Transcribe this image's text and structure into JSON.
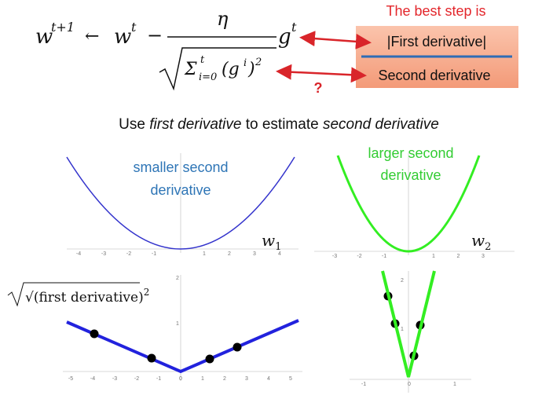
{
  "formula": {
    "lhs": "w",
    "lhs_sup": "t+1",
    "arrow": "←",
    "w": "w",
    "w_sup": "t",
    "minus": "−",
    "eta": "η",
    "sigma": "Σ",
    "sigma_sup": "t",
    "sigma_sub": "i=0",
    "g_open": "(g",
    "g_sup": "i",
    "g_close": ")",
    "square": "2",
    "g": "g",
    "g_t": "t"
  },
  "box": {
    "title": "The best step is",
    "first": "|First derivative|",
    "second": "Second derivative",
    "question": "?"
  },
  "heading": {
    "parts": [
      "Use ",
      "first derivative",
      " to estimate ",
      "second derivative"
    ]
  },
  "plots": [
    {
      "label": [
        "smaller second",
        "derivative"
      ],
      "variable": "w",
      "subscript": "1",
      "xticks": [
        "-4",
        "-3",
        "-2",
        "-1",
        "1",
        "2",
        "3",
        "4"
      ]
    },
    {
      "label": [
        "larger second",
        "derivative"
      ],
      "variable": "w",
      "subscript": "2",
      "xticks": [
        "-3",
        "-2",
        "-1",
        "1",
        "2",
        "3"
      ]
    },
    {
      "label": [
        "√(first derivative)",
        "2"
      ],
      "xticks": [
        "-5",
        "-4",
        "-3",
        "-2",
        "-1",
        "0",
        "1",
        "2",
        "3",
        "4",
        "5"
      ],
      "yticks": [
        "1",
        "2"
      ]
    },
    {
      "xticks": [
        "-1",
        "0",
        "1"
      ],
      "yticks": [
        "1",
        "2"
      ]
    }
  ]
}
